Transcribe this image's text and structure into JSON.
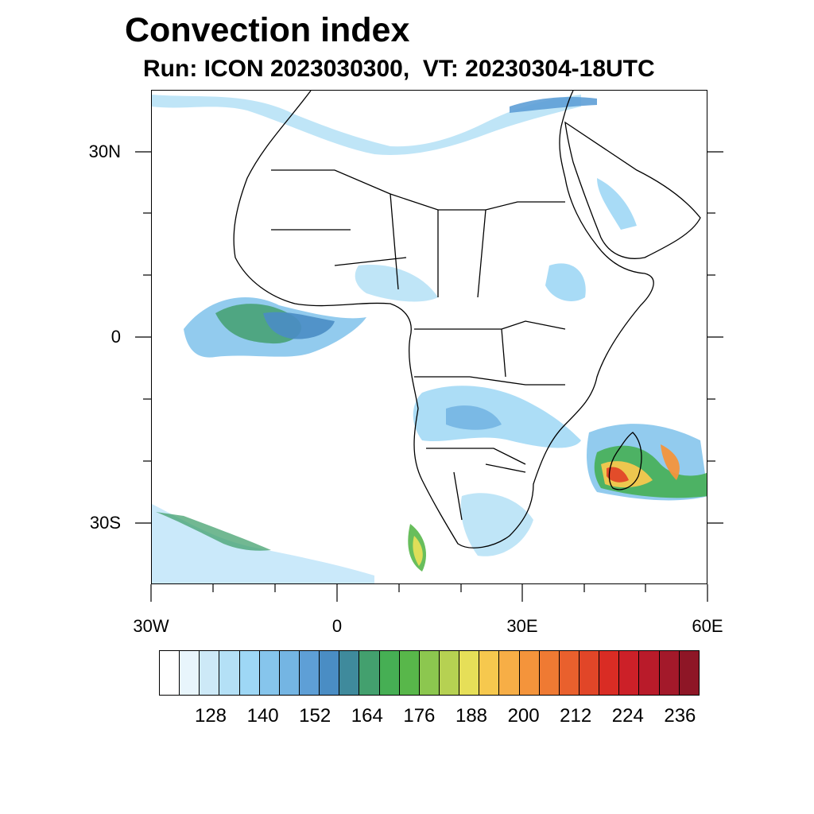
{
  "title": "Convection index",
  "subtitle": "Run: ICON 2023030300,  VT: 20230304-18UTC",
  "axes": {
    "y_ticks": [
      "30N",
      "0",
      "30S"
    ],
    "x_ticks": [
      "30W",
      "0",
      "30E",
      "60E"
    ]
  },
  "map": {
    "lon_range": [
      -30,
      60
    ],
    "lat_range": [
      -40,
      40
    ],
    "background": "#ffffff",
    "coastline_color": "#000000"
  },
  "colorbar": {
    "colors": [
      "#ffffff",
      "#e8f5fc",
      "#cde9f7",
      "#b4e0f6",
      "#9ed7f5",
      "#86c5ec",
      "#74b5e3",
      "#5e9fd6",
      "#4a8dc4",
      "#3f8a9c",
      "#43a06e",
      "#46af54",
      "#58b74a",
      "#8cc74f",
      "#b6d152",
      "#e6df58",
      "#f6c84e",
      "#f7ae46",
      "#f4943b",
      "#ef7a33",
      "#e9602d",
      "#e14628",
      "#d92c24",
      "#cc2028",
      "#b91b2a",
      "#a3192a",
      "#8e1626"
    ],
    "labels": [
      "128",
      "140",
      "152",
      "164",
      "176",
      "188",
      "200",
      "212",
      "224",
      "236"
    ]
  }
}
